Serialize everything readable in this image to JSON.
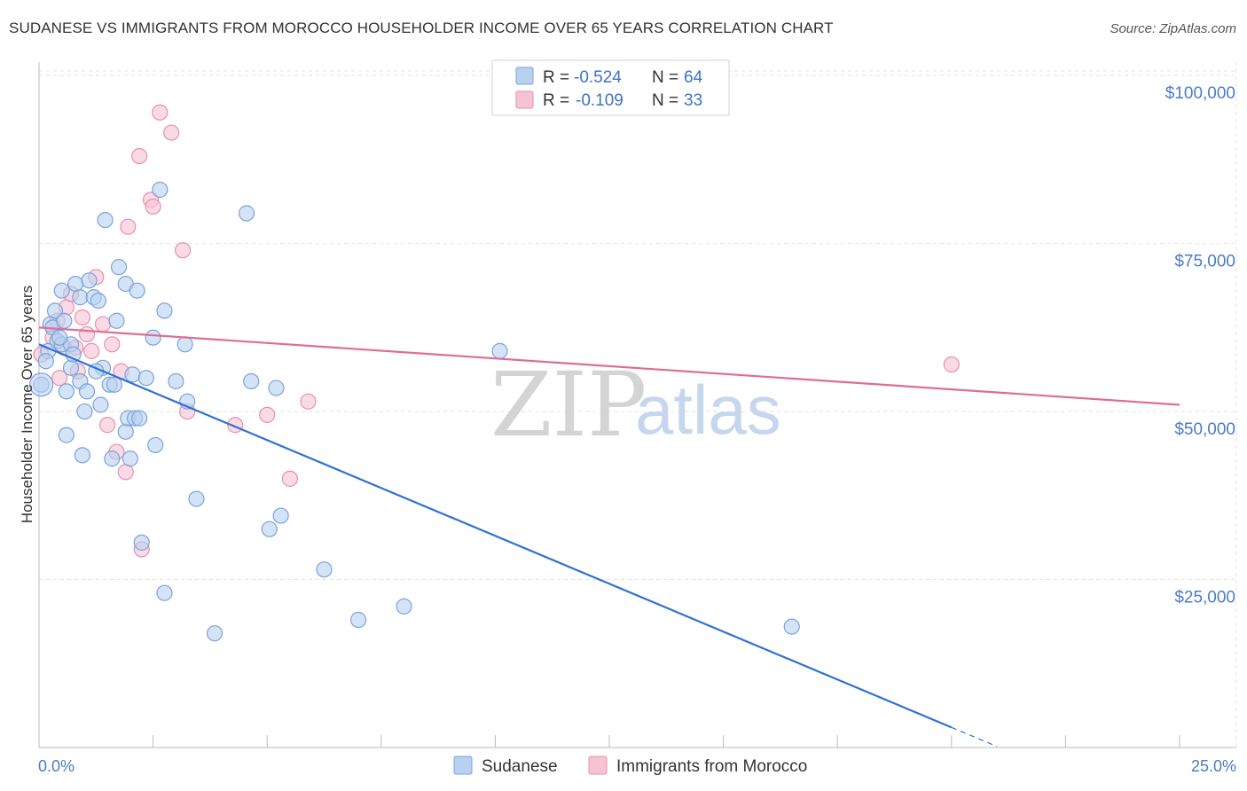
{
  "header": {
    "title": "SUDANESE VS IMMIGRANTS FROM MOROCCO HOUSEHOLDER INCOME OVER 65 YEARS CORRELATION CHART",
    "source": "Source: ZipAtlas.com"
  },
  "watermark": {
    "zip": "ZIP",
    "atlas": "atlas"
  },
  "colors": {
    "blue_fill": "#b9d0f0",
    "blue_stroke": "#7aa3dc",
    "blue_line": "#2e72d2",
    "pink_fill": "#f6c3d3",
    "pink_stroke": "#e98fae",
    "pink_line": "#e06c95",
    "grid": "#e2e2e2",
    "tick_label": "#4a7cc8"
  },
  "legend_box": {
    "rows": [
      {
        "r_label": "R = ",
        "r_value": "-0.524",
        "n_label": "N = ",
        "n_value": "64"
      },
      {
        "r_label": "R = ",
        "r_value": "-0.109",
        "n_label": "N = ",
        "n_value": "33"
      }
    ]
  },
  "chart_data": {
    "type": "scatter",
    "title": "SUDANESE VS IMMIGRANTS FROM MOROCCO HOUSEHOLDER INCOME OVER 65 YEARS CORRELATION CHART",
    "xlabel": "",
    "ylabel": "Householder Income Over 65 years",
    "xlim": [
      0,
      25
    ],
    "ylim": [
      0,
      102000
    ],
    "x_tick_labels": [
      "0.0%",
      "25.0%"
    ],
    "y_ticks": [
      25000,
      50000,
      75000,
      100000
    ],
    "y_tick_labels": [
      "$25,000",
      "$50,000",
      "$75,000",
      "$100,000"
    ],
    "grid": true,
    "legend_position": "bottom",
    "series": [
      {
        "name": "Sudanese",
        "r": -0.524,
        "n": 64,
        "trend": {
          "x0": 0.0,
          "y0": 60000,
          "x1": 20.0,
          "y1": 3000,
          "dashed_to_x": 21.0
        },
        "points": [
          [
            0.05,
            54000
          ],
          [
            0.2,
            59000
          ],
          [
            0.25,
            63000
          ],
          [
            0.3,
            62500
          ],
          [
            0.35,
            65000
          ],
          [
            0.4,
            60500
          ],
          [
            0.5,
            60000
          ],
          [
            0.55,
            63500
          ],
          [
            0.5,
            68000
          ],
          [
            0.6,
            53000
          ],
          [
            0.6,
            46500
          ],
          [
            0.7,
            56500
          ],
          [
            0.7,
            60000
          ],
          [
            0.75,
            58500
          ],
          [
            0.8,
            69000
          ],
          [
            0.9,
            67000
          ],
          [
            0.9,
            54500
          ],
          [
            0.95,
            43500
          ],
          [
            1.0,
            50000
          ],
          [
            1.05,
            53000
          ],
          [
            1.1,
            69500
          ],
          [
            1.2,
            67000
          ],
          [
            1.3,
            66500
          ],
          [
            1.35,
            51000
          ],
          [
            1.4,
            56500
          ],
          [
            1.45,
            78500
          ],
          [
            1.55,
            54000
          ],
          [
            1.6,
            43000
          ],
          [
            1.65,
            54000
          ],
          [
            1.7,
            63500
          ],
          [
            1.75,
            71500
          ],
          [
            1.9,
            69000
          ],
          [
            1.9,
            47000
          ],
          [
            1.95,
            49000
          ],
          [
            2.0,
            43000
          ],
          [
            2.05,
            55500
          ],
          [
            2.1,
            49000
          ],
          [
            2.15,
            68000
          ],
          [
            2.2,
            49000
          ],
          [
            2.25,
            30500
          ],
          [
            2.35,
            55000
          ],
          [
            2.5,
            61000
          ],
          [
            2.55,
            45000
          ],
          [
            2.65,
            83000
          ],
          [
            2.75,
            65000
          ],
          [
            2.75,
            23000
          ],
          [
            3.0,
            54500
          ],
          [
            3.2,
            60000
          ],
          [
            3.25,
            51500
          ],
          [
            3.45,
            37000
          ],
          [
            3.85,
            17000
          ],
          [
            4.55,
            79500
          ],
          [
            4.65,
            54500
          ],
          [
            5.05,
            32500
          ],
          [
            5.2,
            53500
          ],
          [
            5.3,
            34500
          ],
          [
            6.25,
            26500
          ],
          [
            7.0,
            19000
          ],
          [
            8.0,
            21000
          ],
          [
            10.1,
            59000
          ],
          [
            16.5,
            18000
          ],
          [
            0.15,
            57500
          ],
          [
            1.25,
            56000
          ],
          [
            0.45,
            61000
          ]
        ]
      },
      {
        "name": "Immigrants from Morocco",
        "r": -0.109,
        "n": 33,
        "trend": {
          "x0": 0.0,
          "y0": 62500,
          "x1": 25.0,
          "y1": 51000
        },
        "points": [
          [
            0.05,
            58500
          ],
          [
            0.3,
            61000
          ],
          [
            0.4,
            63500
          ],
          [
            0.45,
            55000
          ],
          [
            0.55,
            59500
          ],
          [
            0.6,
            65500
          ],
          [
            0.7,
            67500
          ],
          [
            0.8,
            59500
          ],
          [
            0.85,
            56000
          ],
          [
            0.95,
            64000
          ],
          [
            1.05,
            61500
          ],
          [
            1.15,
            59000
          ],
          [
            1.25,
            70000
          ],
          [
            1.4,
            63000
          ],
          [
            1.5,
            48000
          ],
          [
            1.6,
            60000
          ],
          [
            1.7,
            44000
          ],
          [
            1.8,
            56000
          ],
          [
            1.9,
            41000
          ],
          [
            1.95,
            77500
          ],
          [
            2.2,
            88000
          ],
          [
            2.25,
            29500
          ],
          [
            2.45,
            81500
          ],
          [
            2.5,
            80500
          ],
          [
            2.65,
            94500
          ],
          [
            2.9,
            91500
          ],
          [
            3.15,
            74000
          ],
          [
            3.25,
            50000
          ],
          [
            4.3,
            48000
          ],
          [
            5.0,
            49500
          ],
          [
            5.5,
            40000
          ],
          [
            5.9,
            51500
          ],
          [
            20.0,
            57000
          ]
        ]
      }
    ]
  }
}
